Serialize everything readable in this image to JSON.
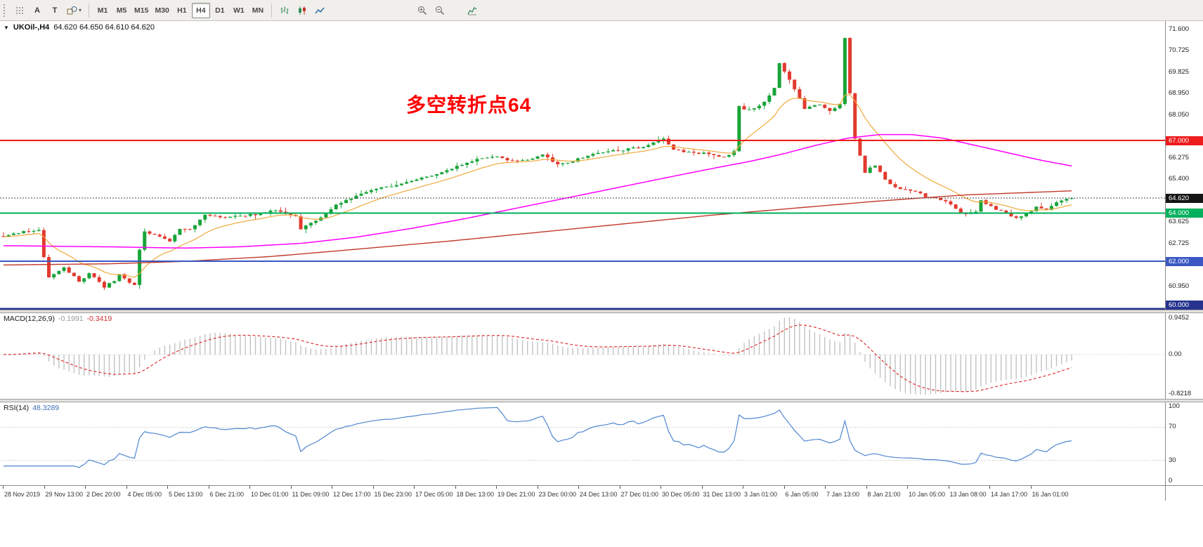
{
  "toolbar": {
    "a_button": "A",
    "t_button": "T",
    "timeframes": [
      "M1",
      "M5",
      "M15",
      "M30",
      "H1",
      "H4",
      "D1",
      "W1",
      "MN"
    ],
    "active_timeframe": "H4"
  },
  "chart": {
    "title": "UKOil-,H4",
    "ohlc": "64.620 64.650 64.610 64.620",
    "annotation": "多空转折点64",
    "annotation_color": "#ff0000",
    "price_labels": [
      "71.600",
      "70.725",
      "69.825",
      "68.950",
      "68.050",
      "66.275",
      "65.400",
      "63.625",
      "62.725",
      "60.950"
    ],
    "badges": [
      {
        "label": "67.000",
        "price": 67.0,
        "color": "#ee1c1c"
      },
      {
        "label": "64.620",
        "price": 64.62,
        "color": "#151515"
      },
      {
        "label": "64.000",
        "price": 64.0,
        "color": "#00b05c"
      },
      {
        "label": "62.000",
        "price": 62.0,
        "color": "#3a57c4"
      },
      {
        "label": "60.000",
        "price": 60.0,
        "color": "#26348f"
      }
    ]
  },
  "macd": {
    "label": "MACD(12,26,9)",
    "value_main": "-0.1991",
    "value_signal": "-0.3419",
    "scale_max": "0.9452",
    "scale_mid": "0.00",
    "scale_min": "-0.8218"
  },
  "rsi": {
    "label": "RSI(14)",
    "value": "48.3289",
    "scale": [
      "100",
      "70",
      "30",
      "0"
    ]
  },
  "time_axis": [
    "28 Nov 2019",
    "29 Nov 13:00",
    "2 Dec 20:00",
    "4 Dec 05:00",
    "5 Dec 13:00",
    "6 Dec 21:00",
    "10 Dec 01:00",
    "11 Dec 09:00",
    "12 Dec 17:00",
    "15 Dec 23:00",
    "17 Dec 05:00",
    "18 Dec 13:00",
    "19 Dec 21:00",
    "23 Dec 00:00",
    "24 Dec 13:00",
    "27 Dec 01:00",
    "30 Dec 05:00",
    "31 Dec 13:00",
    "3 Jan 01:00",
    "6 Jan 05:00",
    "7 Jan 13:00",
    "8 Jan 21:00",
    "10 Jan 05:00",
    "13 Jan 08:00",
    "14 Jan 17:00",
    "16 Jan 01:00"
  ],
  "chart_data": {
    "type": "candlestick",
    "symbol": "UKOil-",
    "timeframe": "H4",
    "last_bar_ohlc": [
      64.62,
      64.65,
      64.61,
      64.62
    ],
    "current_price": 64.62,
    "price_range": [
      60.0,
      71.95
    ],
    "candle_count": 213,
    "price_path": [
      [
        0,
        63.05
      ],
      [
        0.014,
        63.2
      ],
      [
        0.033,
        63.3
      ],
      [
        0.0377,
        62.15
      ],
      [
        0.0425,
        61.35
      ],
      [
        0.0566,
        61.75
      ],
      [
        0.0708,
        61.15
      ],
      [
        0.0802,
        61.5
      ],
      [
        0.0943,
        60.95
      ],
      [
        0.1038,
        61.2
      ],
      [
        0.1085,
        61.45
      ],
      [
        0.1179,
        61.1
      ],
      [
        0.1226,
        61.05
      ],
      [
        0.1274,
        62.5
      ],
      [
        0.1321,
        63.25
      ],
      [
        0.1462,
        63.0
      ],
      [
        0.1557,
        62.85
      ],
      [
        0.1651,
        63.35
      ],
      [
        0.1745,
        63.3
      ],
      [
        0.1887,
        63.95
      ],
      [
        0.2028,
        63.8
      ],
      [
        0.2264,
        63.9
      ],
      [
        0.2453,
        64.0
      ],
      [
        0.2547,
        64.15
      ],
      [
        0.2642,
        63.95
      ],
      [
        0.2736,
        63.85
      ],
      [
        0.2783,
        63.35
      ],
      [
        0.2925,
        63.7
      ],
      [
        0.3019,
        64.0
      ],
      [
        0.3113,
        64.35
      ],
      [
        0.3255,
        64.6
      ],
      [
        0.3396,
        64.9
      ],
      [
        0.3538,
        65.05
      ],
      [
        0.3726,
        65.2
      ],
      [
        0.3821,
        65.35
      ],
      [
        0.3962,
        65.5
      ],
      [
        0.4104,
        65.7
      ],
      [
        0.4292,
        66.0
      ],
      [
        0.4481,
        66.3
      ],
      [
        0.4623,
        66.35
      ],
      [
        0.4764,
        66.15
      ],
      [
        0.4906,
        66.2
      ],
      [
        0.5047,
        66.45
      ],
      [
        0.5189,
        66.0
      ],
      [
        0.533,
        66.15
      ],
      [
        0.5472,
        66.4
      ],
      [
        0.5566,
        66.5
      ],
      [
        0.5755,
        66.6
      ],
      [
        0.5943,
        66.7
      ],
      [
        0.6085,
        66.9
      ],
      [
        0.6179,
        67.05
      ],
      [
        0.6274,
        66.6
      ],
      [
        0.6462,
        66.5
      ],
      [
        0.6604,
        66.45
      ],
      [
        0.6745,
        66.3
      ],
      [
        0.684,
        66.55
      ],
      [
        0.6887,
        68.4
      ],
      [
        0.6981,
        68.25
      ],
      [
        0.7123,
        68.6
      ],
      [
        0.7217,
        69.2
      ],
      [
        0.7264,
        70.25
      ],
      [
        0.7311,
        69.9
      ],
      [
        0.7406,
        69.1
      ],
      [
        0.75,
        68.35
      ],
      [
        0.7642,
        68.5
      ],
      [
        0.7736,
        68.2
      ],
      [
        0.783,
        68.5
      ],
      [
        0.7877,
        71.25
      ],
      [
        0.7925,
        68.9
      ],
      [
        0.7972,
        67.1
      ],
      [
        0.8066,
        65.7
      ],
      [
        0.816,
        66.0
      ],
      [
        0.8255,
        65.35
      ],
      [
        0.8349,
        65.05
      ],
      [
        0.8491,
        64.95
      ],
      [
        0.8632,
        64.7
      ],
      [
        0.8774,
        64.55
      ],
      [
        0.8868,
        64.4
      ],
      [
        0.8962,
        63.95
      ],
      [
        0.9104,
        64.05
      ],
      [
        0.9151,
        64.5
      ],
      [
        0.9292,
        64.15
      ],
      [
        0.9387,
        64.0
      ],
      [
        0.9481,
        63.8
      ],
      [
        0.9623,
        64.1
      ],
      [
        0.967,
        64.3
      ],
      [
        0.9764,
        64.1
      ],
      [
        0.9858,
        64.45
      ],
      [
        1,
        64.62
      ]
    ],
    "ma_fast_period": 13,
    "ma_medium_path": [
      [
        0,
        62.65
      ],
      [
        0.1,
        62.6
      ],
      [
        0.17,
        62.55
      ],
      [
        0.22,
        62.6
      ],
      [
        0.28,
        62.75
      ],
      [
        0.33,
        63.0
      ],
      [
        0.38,
        63.35
      ],
      [
        0.43,
        63.75
      ],
      [
        0.48,
        64.2
      ],
      [
        0.53,
        64.65
      ],
      [
        0.58,
        65.1
      ],
      [
        0.63,
        65.55
      ],
      [
        0.67,
        65.9
      ],
      [
        0.7,
        66.15
      ],
      [
        0.73,
        66.45
      ],
      [
        0.76,
        66.8
      ],
      [
        0.79,
        67.1
      ],
      [
        0.82,
        67.25
      ],
      [
        0.85,
        67.25
      ],
      [
        0.88,
        67.1
      ],
      [
        0.91,
        66.8
      ],
      [
        0.94,
        66.5
      ],
      [
        0.97,
        66.2
      ],
      [
        1,
        65.95
      ]
    ],
    "ma_slow_path": [
      [
        0,
        61.85
      ],
      [
        0.1,
        61.9
      ],
      [
        0.17,
        62.0
      ],
      [
        0.25,
        62.2
      ],
      [
        0.33,
        62.5
      ],
      [
        0.42,
        62.85
      ],
      [
        0.5,
        63.2
      ],
      [
        0.58,
        63.55
      ],
      [
        0.66,
        63.9
      ],
      [
        0.74,
        64.2
      ],
      [
        0.82,
        64.5
      ],
      [
        0.9,
        64.75
      ],
      [
        1,
        64.92
      ]
    ],
    "hlines": [
      {
        "price": 67.0,
        "color": "#ee1c1c",
        "width": 2
      },
      {
        "price": 64.0,
        "color": "#00b05c",
        "width": 2
      },
      {
        "price": 62.0,
        "color": "#3a57c4",
        "width": 2
      },
      {
        "price": 60.0,
        "color": "#26348f",
        "width": 2.5
      }
    ],
    "macd_settings": {
      "fast": 12,
      "slow": 26,
      "signal": 9
    },
    "macd_last": {
      "main": -0.1991,
      "signal": -0.3419
    },
    "macd_display_range": [
      -0.8218,
      0.9452
    ],
    "rsi_period": 14,
    "rsi_last": 48.3289,
    "rsi_levels": [
      70,
      30
    ],
    "colors": {
      "bull": "#18a439",
      "bear": "#e23a2e",
      "ma_fast": "#efa93a",
      "ma_medium": "#ff00ff",
      "ma_slow": "#c0392b",
      "macd_hist": "#c2c2c2",
      "macd_signal": "#e03030",
      "rsi": "#4f86d0"
    }
  }
}
